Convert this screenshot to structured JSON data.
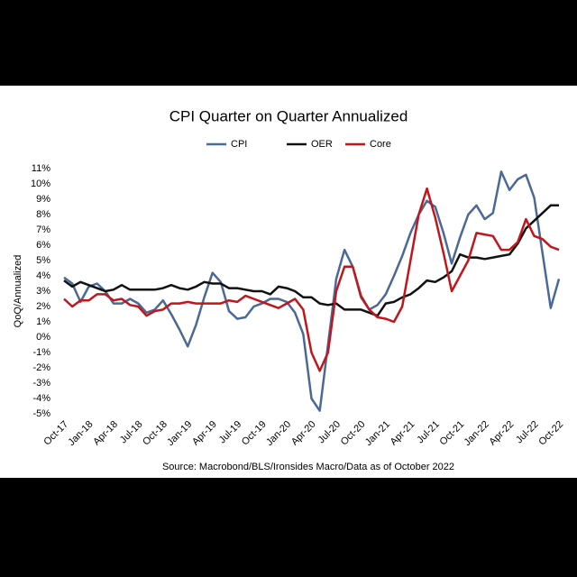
{
  "chart_data": {
    "type": "line",
    "title": "CPI Quarter on Quarter Annualized",
    "y_label": "QoQ/Annualized",
    "source": "Source: Macrobond/BLS/Ironsides Macro/Data as of October 2022",
    "categories": [
      "Oct-17",
      null,
      null,
      "Jan-18",
      null,
      null,
      "Apr-18",
      null,
      null,
      "Jul-18",
      null,
      null,
      "Oct-18",
      null,
      null,
      "Jan-19",
      null,
      null,
      "Apr-19",
      null,
      null,
      "Jul-19",
      null,
      null,
      "Oct-19",
      null,
      null,
      "Jan-20",
      null,
      null,
      "Apr-20",
      null,
      null,
      "Jul-20",
      null,
      null,
      "Oct-20",
      null,
      null,
      "Jan-21",
      null,
      null,
      "Apr-21",
      null,
      null,
      "Jul-21",
      null,
      null,
      "Oct-21",
      null,
      null,
      "Jan-22",
      null,
      null,
      "Apr-22",
      null,
      null,
      "Jul-22",
      null,
      null,
      "Oct-22"
    ],
    "series": [
      {
        "name": "CPI",
        "color": "#4a6898",
        "values": [
          3.9,
          3.5,
          2.3,
          3.3,
          3.5,
          3.0,
          2.2,
          2.2,
          2.5,
          2.2,
          1.6,
          1.8,
          2.4,
          1.5,
          0.5,
          -0.6,
          0.8,
          2.6,
          4.2,
          3.6,
          1.7,
          1.2,
          1.3,
          2.0,
          2.2,
          2.5,
          2.5,
          2.3,
          1.6,
          0.2,
          -4.0,
          -4.8,
          -0.5,
          3.8,
          5.7,
          4.6,
          2.6,
          1.8,
          2.1,
          2.8,
          4.0,
          5.3,
          6.8,
          8.0,
          8.9,
          8.5,
          6.8,
          4.8,
          6.5,
          8.0,
          8.6,
          7.7,
          8.1,
          10.8,
          9.6,
          10.3,
          10.6,
          9.1,
          5.5,
          1.9,
          3.8
        ]
      },
      {
        "name": "OER",
        "color": "#111111",
        "values": [
          3.7,
          3.3,
          3.6,
          3.4,
          3.2,
          3.0,
          3.1,
          3.4,
          3.1,
          3.1,
          3.1,
          3.1,
          3.2,
          3.4,
          3.2,
          3.1,
          3.3,
          3.6,
          3.5,
          3.5,
          3.2,
          3.2,
          3.1,
          3.0,
          3.0,
          2.8,
          3.3,
          3.2,
          3.0,
          2.6,
          2.6,
          2.2,
          2.1,
          2.2,
          1.8,
          1.8,
          1.8,
          1.6,
          1.4,
          2.2,
          2.3,
          2.6,
          2.8,
          3.2,
          3.7,
          3.6,
          3.9,
          4.3,
          5.4,
          5.2,
          5.2,
          5.1,
          5.2,
          5.3,
          5.4,
          6.1,
          7.1,
          7.6,
          8.1,
          8.6,
          8.6
        ]
      },
      {
        "name": "Core",
        "color": "#c0161c",
        "values": [
          2.5,
          2.0,
          2.4,
          2.4,
          2.8,
          2.8,
          2.4,
          2.5,
          2.1,
          2.0,
          1.4,
          1.7,
          1.8,
          2.2,
          2.2,
          2.3,
          2.2,
          2.2,
          2.2,
          2.2,
          2.4,
          2.3,
          2.7,
          2.5,
          2.3,
          2.1,
          1.9,
          2.2,
          2.5,
          1.8,
          -1.0,
          -2.2,
          -1.0,
          3.0,
          4.6,
          4.6,
          2.7,
          1.8,
          1.3,
          1.2,
          1.0,
          2.0,
          5.0,
          8.0,
          9.7,
          7.8,
          5.5,
          3.0,
          4.0,
          5.0,
          6.8,
          6.7,
          6.6,
          5.7,
          5.7,
          6.2,
          7.7,
          6.6,
          6.4,
          5.9,
          5.7
        ]
      }
    ],
    "ylim": [
      -5,
      11
    ],
    "yticks": [
      {
        "value": -5,
        "label": "-5%"
      },
      {
        "value": -4,
        "label": "-4%"
      },
      {
        "value": -3,
        "label": "-3%"
      },
      {
        "value": -2,
        "label": "-2%"
      },
      {
        "value": -1,
        "label": "-1%"
      },
      {
        "value": 0,
        "label": "0%"
      },
      {
        "value": 1,
        "label": "1%"
      },
      {
        "value": 2,
        "label": "2%"
      },
      {
        "value": 3,
        "label": "3%"
      },
      {
        "value": 4,
        "label": "4%"
      },
      {
        "value": 5,
        "label": "5%"
      },
      {
        "value": 6,
        "label": "6%"
      },
      {
        "value": 7,
        "label": "7%"
      },
      {
        "value": 8,
        "label": "8%"
      },
      {
        "value": 9,
        "label": "9%"
      },
      {
        "value": 10,
        "label": "10%"
      },
      {
        "value": 11,
        "label": "11%"
      }
    ],
    "grid": false,
    "legend": "top"
  }
}
